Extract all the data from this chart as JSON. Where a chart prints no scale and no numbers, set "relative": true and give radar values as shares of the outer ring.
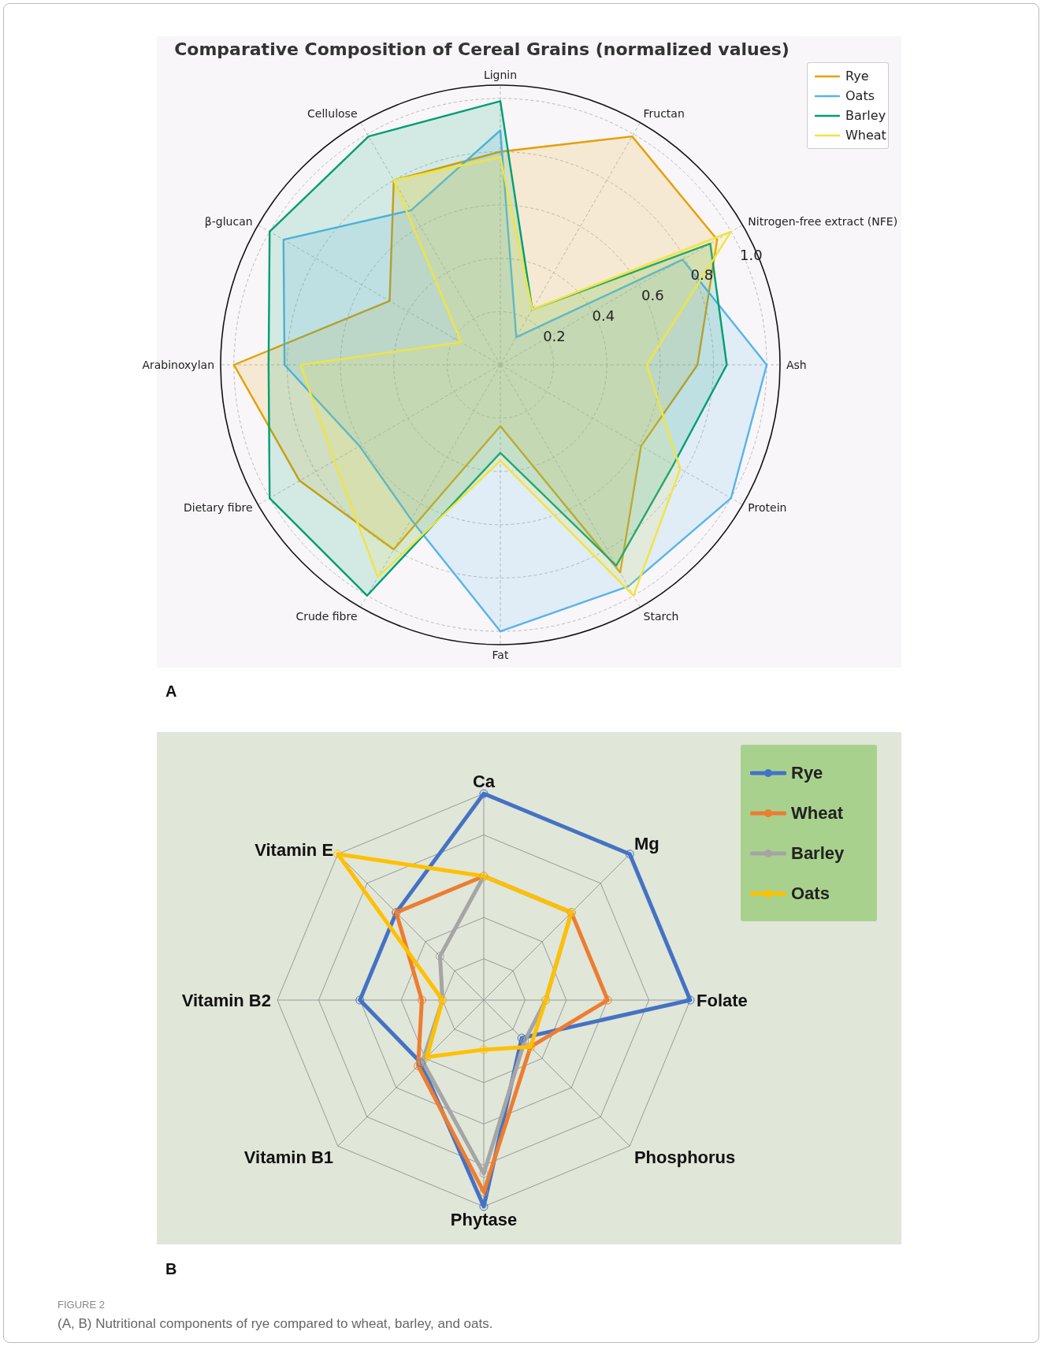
{
  "chart_data": [
    {
      "type": "radar",
      "title": "Comparative Composition of Cereal Grains (normalized values)",
      "categories": [
        "Lignin",
        "Fructan",
        "Nitrogen-free extract (NFE)",
        "Ash",
        "Protein",
        "Starch",
        "Fat",
        "Crude fibre",
        "Dietary fibre",
        "Arabinoxylan",
        "β-glucan",
        "Cellulose"
      ],
      "series": [
        {
          "name": "Rye",
          "color": "#e69f00",
          "values": [
            0.8,
            0.99,
            0.94,
            0.74,
            0.61,
            0.9,
            0.23,
            0.8,
            0.87,
            1.0,
            0.48,
            0.8
          ]
        },
        {
          "name": "Oats",
          "color": "#56b4e9",
          "values": [
            0.88,
            0.12,
            0.79,
            1.0,
            1.0,
            0.96,
            1.0,
            0.67,
            0.61,
            0.81,
            0.94,
            0.67
          ]
        },
        {
          "name": "Barley",
          "color": "#009e73",
          "values": [
            0.99,
            0.24,
            0.91,
            0.85,
            0.75,
            0.87,
            0.33,
            1.0,
            1.0,
            0.87,
            1.0,
            0.99
          ]
        },
        {
          "name": "Wheat",
          "color": "#f0e442",
          "values": [
            0.78,
            0.24,
            1.0,
            0.55,
            0.78,
            1.0,
            0.36,
            0.92,
            0.72,
            0.75,
            0.17,
            0.8
          ]
        }
      ],
      "ylim": [
        0,
        1.05
      ],
      "yticks": [
        0.2,
        0.4,
        0.6,
        0.8,
        {
          "value": 1.0,
          "label": "1.0"
        }
      ],
      "grid": true,
      "legend": "top right",
      "marker": "none",
      "line_style": "solid",
      "annotations": [
        "A"
      ]
    },
    {
      "type": "radar",
      "relative": true,
      "categories": [
        "Ca",
        "Mg",
        "Folate",
        "Phosphorus",
        "Phytase",
        "Vitamin B1",
        "Vitamin B2",
        "Vitamin E"
      ],
      "series": [
        {
          "name": "Rye",
          "color": "#4472c4",
          "values": [
            1.0,
            1.0,
            1.0,
            0.26,
            1.0,
            0.43,
            0.6,
            0.6
          ]
        },
        {
          "name": "Wheat",
          "color": "#ed7d31",
          "values": [
            0.6,
            0.6,
            0.6,
            0.32,
            0.93,
            0.45,
            0.3,
            0.6
          ]
        },
        {
          "name": "Barley",
          "color": "#a5a5a5",
          "values": [
            0.6,
            0.6,
            0.3,
            0.28,
            0.84,
            0.42,
            0.2,
            0.3
          ]
        },
        {
          "name": "Oats",
          "color": "#ffc000",
          "values": [
            0.6,
            0.6,
            0.3,
            0.32,
            0.24,
            0.39,
            0.2,
            1.0
          ]
        }
      ],
      "grid": true,
      "legend": "top right",
      "marker": "circle",
      "line_style": "solid",
      "annotations": [
        "B",
        "FIGURE 2",
        "(A, B) Nutritional components of rye compared to wheat, barley, and oats."
      ]
    }
  ]
}
